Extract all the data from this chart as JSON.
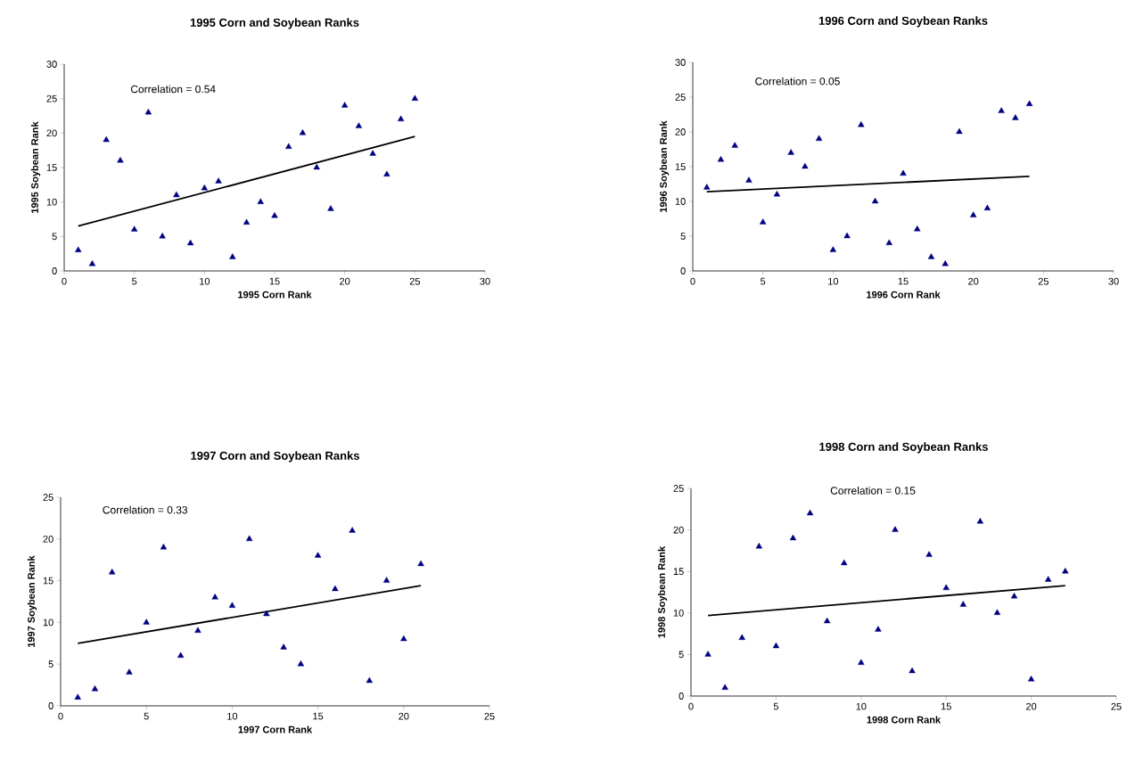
{
  "chart_data": [
    {
      "type": "scatter",
      "title": "1995 Corn and Soybean Ranks",
      "xlabel": "1995 Corn Rank",
      "ylabel": "1995 Soybean Rank",
      "annotations": [
        "Correlation = 0.54"
      ],
      "xlim": [
        0,
        30
      ],
      "ylim": [
        0,
        30
      ],
      "xticks": [
        0,
        5,
        10,
        15,
        20,
        25,
        30
      ],
      "yticks": [
        0,
        5,
        10,
        15,
        20,
        25,
        30
      ],
      "series": [
        {
          "color": "#000080",
          "marker": "triangle",
          "x": [
            1,
            2,
            3,
            4,
            5,
            6,
            7,
            8,
            9,
            10,
            11,
            12,
            13,
            14,
            15,
            16,
            17,
            18,
            19,
            20,
            21,
            22,
            23,
            24,
            25
          ],
          "values": [
            3,
            1,
            19,
            16,
            6,
            23,
            5,
            11,
            4,
            12,
            13,
            2,
            7,
            10,
            8,
            18,
            20,
            15,
            9,
            24,
            21,
            17,
            14,
            22,
            25
          ]
        },
        {
          "type": "line",
          "color": "#000000",
          "x": [
            1,
            25
          ],
          "values": [
            6.5,
            19.5
          ]
        }
      ]
    },
    {
      "type": "scatter",
      "title": "1996 Corn and Soybean Ranks",
      "xlabel": "1996 Corn Rank",
      "ylabel": "1996 Soybean Rank",
      "annotations": [
        "Correlation = 0.05"
      ],
      "xlim": [
        0,
        30
      ],
      "ylim": [
        0,
        30
      ],
      "xticks": [
        0,
        5,
        10,
        15,
        20,
        25,
        30
      ],
      "yticks": [
        0,
        5,
        10,
        15,
        20,
        25,
        30
      ],
      "series": [
        {
          "color": "#000080",
          "marker": "triangle",
          "x": [
            1,
            2,
            3,
            4,
            5,
            6,
            7,
            8,
            9,
            10,
            11,
            12,
            13,
            14,
            15,
            16,
            17,
            18,
            19,
            20,
            21,
            22,
            23,
            24
          ],
          "values": [
            12,
            16,
            18,
            13,
            7,
            11,
            17,
            15,
            19,
            3,
            5,
            21,
            10,
            4,
            14,
            6,
            2,
            1,
            20,
            8,
            9,
            23,
            22,
            24
          ]
        },
        {
          "type": "line",
          "color": "#000000",
          "x": [
            1,
            24
          ],
          "values": [
            11.4,
            13.6
          ]
        }
      ]
    },
    {
      "type": "scatter",
      "title": "1997 Corn and Soybean Ranks",
      "xlabel": "1997 Corn Rank",
      "ylabel": "1997 Soybean Rank",
      "annotations": [
        "Correlation = 0.33"
      ],
      "xlim": [
        0,
        25
      ],
      "ylim": [
        0,
        25
      ],
      "xticks": [
        0,
        5,
        10,
        15,
        20,
        25
      ],
      "yticks": [
        0,
        5,
        10,
        15,
        20,
        25
      ],
      "series": [
        {
          "color": "#000080",
          "marker": "triangle",
          "x": [
            1,
            2,
            3,
            4,
            5,
            6,
            7,
            8,
            9,
            10,
            11,
            12,
            13,
            14,
            15,
            16,
            17,
            18,
            19,
            20,
            21
          ],
          "values": [
            1,
            2,
            16,
            4,
            10,
            19,
            6,
            9,
            13,
            12,
            20,
            11,
            7,
            5,
            18,
            14,
            21,
            3,
            15,
            8,
            17
          ]
        },
        {
          "type": "line",
          "color": "#000000",
          "x": [
            1,
            21
          ],
          "values": [
            7.5,
            14.4
          ]
        }
      ]
    },
    {
      "type": "scatter",
      "title": "1998 Corn and Soybean Ranks",
      "xlabel": "1998 Corn Rank",
      "ylabel": "1998 Soybean Rank",
      "annotations": [
        "Correlation = 0.15"
      ],
      "xlim": [
        0,
        25
      ],
      "ylim": [
        0,
        25
      ],
      "xticks": [
        0,
        5,
        10,
        15,
        20,
        25
      ],
      "yticks": [
        0,
        5,
        10,
        15,
        20,
        25
      ],
      "series": [
        {
          "color": "#000080",
          "marker": "triangle",
          "x": [
            1,
            2,
            3,
            4,
            5,
            6,
            7,
            8,
            9,
            10,
            11,
            12,
            13,
            14,
            15,
            16,
            17,
            18,
            19,
            20,
            21,
            22
          ],
          "values": [
            5,
            1,
            7,
            18,
            6,
            19,
            22,
            9,
            16,
            4,
            8,
            20,
            3,
            17,
            13,
            11,
            21,
            10,
            12,
            2,
            14,
            15
          ]
        },
        {
          "type": "line",
          "color": "#000000",
          "x": [
            1,
            22
          ],
          "values": [
            9.7,
            13.3
          ]
        }
      ]
    }
  ]
}
